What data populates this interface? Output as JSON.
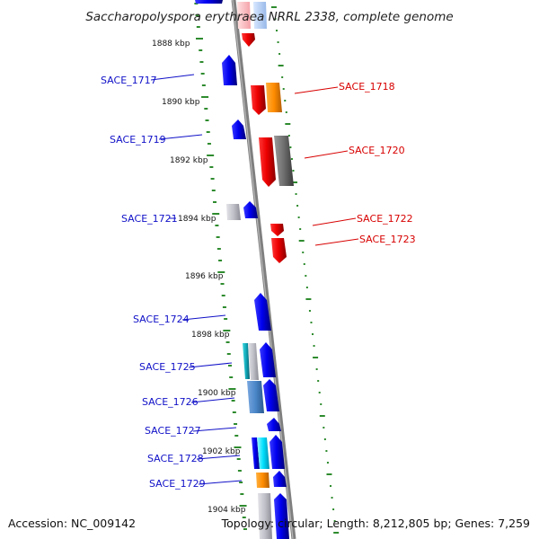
{
  "title": "Saccharopolyspora erythraea NRRL 2338, complete genome",
  "footer": {
    "accession": "Accession: NC_009142",
    "summary": "Topology: circular; Length: 8,212,805 bp; Genes: 7,259"
  },
  "colors": {
    "blue_gene": "#0000e6",
    "red_gene": "#ee0000",
    "orange_gene": "#ff8c00",
    "gray_gene": "#6e6e6e",
    "backbone": "#7f7f7f",
    "tick_green": "#2e8b2e"
  },
  "ticks": [
    {
      "label": "1888 kbp",
      "kbp": 1888
    },
    {
      "label": "1890 kbp",
      "kbp": 1890
    },
    {
      "label": "1892 kbp",
      "kbp": 1892
    },
    {
      "label": "1894 kbp",
      "kbp": 1894
    },
    {
      "label": "1896 kbp",
      "kbp": 1896
    },
    {
      "label": "1898 kbp",
      "kbp": 1898
    },
    {
      "label": "1900 kbp",
      "kbp": 1900
    },
    {
      "label": "1902 kbp",
      "kbp": 1902
    },
    {
      "label": "1904 kbp",
      "kbp": 1904
    }
  ],
  "gene_labels": [
    {
      "name": "SACE_1717",
      "strand": "reverse"
    },
    {
      "name": "SACE_1718",
      "strand": "forward"
    },
    {
      "name": "SACE_1719",
      "strand": "reverse"
    },
    {
      "name": "SACE_1720",
      "strand": "forward"
    },
    {
      "name": "SACE_1721",
      "strand": "reverse"
    },
    {
      "name": "SACE_1722",
      "strand": "forward"
    },
    {
      "name": "SACE_1723",
      "strand": "forward"
    },
    {
      "name": "SACE_1724",
      "strand": "reverse"
    },
    {
      "name": "SACE_1725",
      "strand": "reverse"
    },
    {
      "name": "SACE_1726",
      "strand": "reverse"
    },
    {
      "name": "SACE_1727",
      "strand": "reverse"
    },
    {
      "name": "SACE_1728",
      "strand": "reverse"
    },
    {
      "name": "SACE_1729",
      "strand": "reverse"
    }
  ]
}
